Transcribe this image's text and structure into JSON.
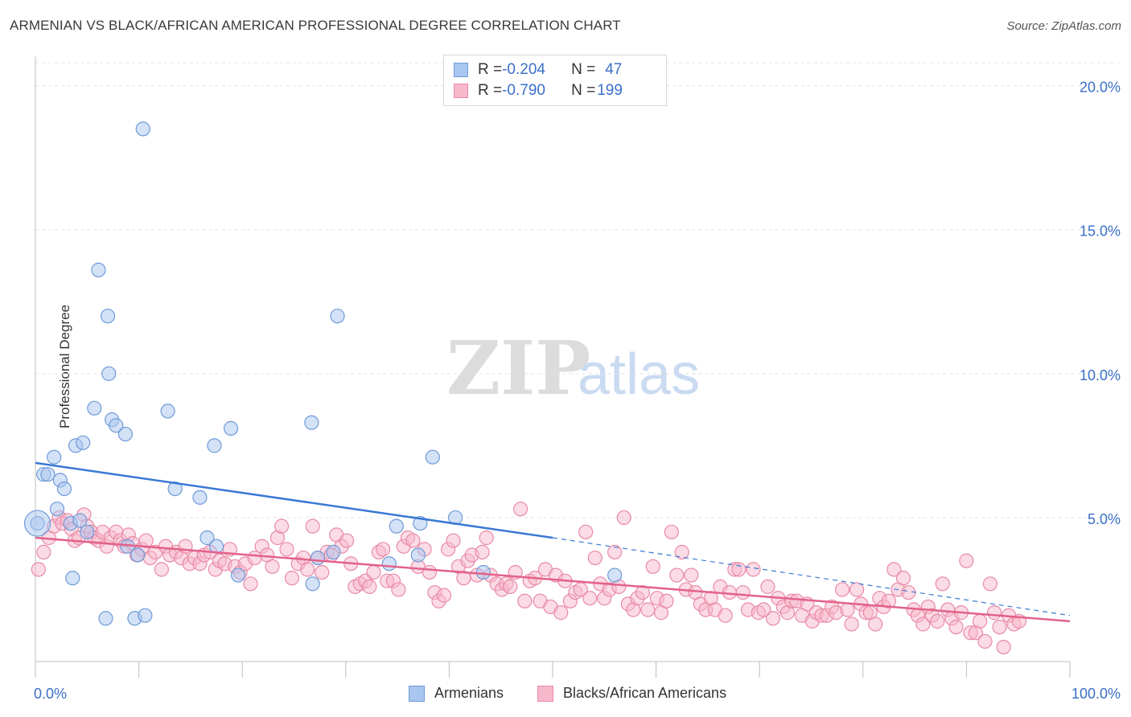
{
  "title": "ARMENIAN VS BLACK/AFRICAN AMERICAN PROFESSIONAL DEGREE CORRELATION CHART",
  "source": "Source: ZipAtlas.com",
  "watermark": {
    "zip": "ZIP",
    "atlas": "atlas"
  },
  "legend_top": [
    {
      "r_label": "R = ",
      "r_value": "-0.204",
      "n_label": "N = ",
      "n_value": "47",
      "color": "#a9c6f0",
      "border": "#6f9ad8"
    },
    {
      "r_label": "R = ",
      "r_value": "-0.790",
      "n_label": "N = ",
      "n_value": "199",
      "color": "#f7b8cb",
      "border": "#e88aa6"
    }
  ],
  "legend_bottom": [
    {
      "label": "Armenians",
      "color": "#a9c6f0",
      "border": "#6f9ad8"
    },
    {
      "label": "Blacks/African Americans",
      "color": "#f7b8cb",
      "border": "#e88aa6"
    }
  ],
  "chart_data": {
    "type": "scatter",
    "title": "ARMENIAN VS BLACK/AFRICAN AMERICAN PROFESSIONAL DEGREE CORRELATION CHART",
    "xlabel": "",
    "ylabel": "Professional Degree",
    "xlim": [
      0,
      100
    ],
    "ylim": [
      0,
      20.8
    ],
    "x_tick_labels": [
      "0.0%",
      "100.0%"
    ],
    "y_ticks": [
      5,
      10,
      15,
      20
    ],
    "y_tick_labels": [
      "5.0%",
      "10.0%",
      "15.0%",
      "20.0%"
    ],
    "grid": true,
    "series": [
      {
        "name": "Armenians",
        "color": "#6f9ad8",
        "fill": "#a9c6f0",
        "line_color": "#3a78d4",
        "trend_solid": [
          [
            0,
            6.9
          ],
          [
            50,
            4.3
          ]
        ],
        "trend_dashed": [
          [
            50,
            4.3
          ],
          [
            100,
            1.6
          ]
        ],
        "points": [
          [
            0.2,
            4.8
          ],
          [
            0.8,
            6.5
          ],
          [
            1.2,
            6.5
          ],
          [
            1.8,
            7.1
          ],
          [
            2.1,
            5.3
          ],
          [
            2.4,
            6.3
          ],
          [
            2.8,
            6.0
          ],
          [
            3.4,
            4.8
          ],
          [
            3.6,
            2.9
          ],
          [
            3.9,
            7.5
          ],
          [
            4.3,
            4.9
          ],
          [
            4.6,
            7.6
          ],
          [
            5.0,
            4.5
          ],
          [
            5.7,
            8.8
          ],
          [
            6.1,
            13.6
          ],
          [
            6.8,
            1.5
          ],
          [
            7.0,
            12.0
          ],
          [
            7.1,
            10.0
          ],
          [
            7.4,
            8.4
          ],
          [
            7.8,
            8.2
          ],
          [
            8.7,
            7.9
          ],
          [
            8.9,
            4.0
          ],
          [
            9.6,
            1.5
          ],
          [
            9.9,
            3.7
          ],
          [
            10.4,
            18.5
          ],
          [
            10.6,
            1.6
          ],
          [
            12.8,
            8.7
          ],
          [
            13.5,
            6.0
          ],
          [
            15.9,
            5.7
          ],
          [
            16.6,
            4.3
          ],
          [
            17.3,
            7.5
          ],
          [
            17.5,
            4.0
          ],
          [
            18.9,
            8.1
          ],
          [
            19.6,
            3.0
          ],
          [
            26.7,
            8.3
          ],
          [
            26.8,
            2.7
          ],
          [
            27.3,
            3.6
          ],
          [
            28.8,
            3.8
          ],
          [
            29.2,
            12.0
          ],
          [
            34.2,
            3.4
          ],
          [
            34.9,
            4.7
          ],
          [
            37.0,
            3.7
          ],
          [
            37.2,
            4.8
          ],
          [
            38.4,
            7.1
          ],
          [
            40.6,
            5.0
          ],
          [
            43.3,
            3.1
          ],
          [
            56.0,
            3.0
          ]
        ]
      },
      {
        "name": "Blacks/African Americans",
        "color": "#e88aa6",
        "fill": "#f7b8cb",
        "line_color": "#e2628a",
        "trend_solid": [
          [
            0,
            4.3
          ],
          [
            100,
            1.4
          ]
        ],
        "points": [
          [
            0.3,
            3.2
          ],
          [
            0.8,
            3.8
          ],
          [
            1.3,
            4.3
          ],
          [
            1.8,
            4.7
          ],
          [
            2.3,
            5.0
          ],
          [
            2.6,
            4.8
          ],
          [
            3.1,
            4.9
          ],
          [
            3.5,
            4.6
          ],
          [
            3.8,
            4.2
          ],
          [
            4.2,
            4.3
          ],
          [
            4.7,
            5.1
          ],
          [
            5.0,
            4.7
          ],
          [
            5.4,
            4.5
          ],
          [
            5.7,
            4.3
          ],
          [
            6.1,
            4.2
          ],
          [
            6.5,
            4.5
          ],
          [
            6.9,
            4.0
          ],
          [
            7.3,
            4.3
          ],
          [
            7.8,
            4.5
          ],
          [
            8.2,
            4.2
          ],
          [
            8.6,
            4.0
          ],
          [
            9.0,
            4.4
          ],
          [
            9.4,
            4.1
          ],
          [
            9.8,
            3.7
          ],
          [
            10.3,
            3.9
          ],
          [
            10.7,
            4.2
          ],
          [
            11.1,
            3.6
          ],
          [
            11.6,
            3.8
          ],
          [
            12.2,
            3.2
          ],
          [
            12.6,
            4.0
          ],
          [
            13.0,
            3.7
          ],
          [
            13.6,
            3.8
          ],
          [
            14.1,
            3.6
          ],
          [
            14.5,
            4.0
          ],
          [
            14.9,
            3.4
          ],
          [
            15.4,
            3.6
          ],
          [
            15.9,
            3.4
          ],
          [
            16.3,
            3.7
          ],
          [
            16.9,
            3.8
          ],
          [
            17.4,
            3.2
          ],
          [
            17.8,
            3.5
          ],
          [
            18.3,
            3.4
          ],
          [
            18.8,
            3.9
          ],
          [
            19.3,
            3.3
          ],
          [
            19.8,
            3.1
          ],
          [
            20.3,
            3.4
          ],
          [
            20.8,
            2.7
          ],
          [
            21.2,
            3.6
          ],
          [
            21.9,
            4.0
          ],
          [
            22.4,
            3.7
          ],
          [
            22.9,
            3.3
          ],
          [
            23.4,
            4.3
          ],
          [
            23.8,
            4.7
          ],
          [
            24.3,
            3.9
          ],
          [
            24.8,
            2.9
          ],
          [
            25.4,
            3.4
          ],
          [
            25.9,
            3.6
          ],
          [
            26.3,
            3.2
          ],
          [
            26.8,
            4.7
          ],
          [
            27.3,
            3.6
          ],
          [
            27.7,
            3.1
          ],
          [
            28.2,
            3.8
          ],
          [
            28.6,
            3.7
          ],
          [
            29.1,
            4.4
          ],
          [
            29.6,
            4.0
          ],
          [
            30.1,
            4.2
          ],
          [
            30.5,
            3.4
          ],
          [
            30.9,
            2.6
          ],
          [
            31.4,
            2.7
          ],
          [
            31.9,
            2.8
          ],
          [
            32.3,
            2.6
          ],
          [
            32.7,
            3.1
          ],
          [
            33.2,
            3.8
          ],
          [
            33.6,
            3.9
          ],
          [
            34.0,
            2.8
          ],
          [
            34.6,
            2.8
          ],
          [
            35.1,
            2.5
          ],
          [
            35.6,
            4.0
          ],
          [
            36.0,
            4.3
          ],
          [
            36.5,
            4.2
          ],
          [
            37.0,
            3.3
          ],
          [
            37.6,
            3.9
          ],
          [
            38.1,
            3.1
          ],
          [
            38.6,
            2.4
          ],
          [
            39.0,
            2.1
          ],
          [
            39.5,
            2.3
          ],
          [
            39.9,
            3.9
          ],
          [
            40.4,
            4.2
          ],
          [
            40.9,
            3.3
          ],
          [
            41.4,
            2.9
          ],
          [
            41.8,
            3.5
          ],
          [
            42.2,
            3.7
          ],
          [
            42.7,
            3.0
          ],
          [
            43.2,
            3.8
          ],
          [
            43.6,
            4.3
          ],
          [
            44.0,
            3.0
          ],
          [
            44.6,
            2.7
          ],
          [
            45.1,
            2.5
          ],
          [
            45.5,
            2.7
          ],
          [
            45.9,
            2.6
          ],
          [
            46.4,
            3.1
          ],
          [
            46.9,
            5.3
          ],
          [
            47.3,
            2.1
          ],
          [
            47.8,
            2.8
          ],
          [
            48.3,
            2.9
          ],
          [
            48.8,
            2.1
          ],
          [
            49.3,
            3.2
          ],
          [
            49.8,
            1.9
          ],
          [
            50.3,
            3.0
          ],
          [
            50.8,
            1.7
          ],
          [
            51.2,
            2.8
          ],
          [
            51.7,
            2.1
          ],
          [
            52.2,
            2.4
          ],
          [
            52.7,
            2.5
          ],
          [
            53.2,
            4.5
          ],
          [
            53.6,
            2.2
          ],
          [
            54.1,
            3.6
          ],
          [
            54.6,
            2.7
          ],
          [
            55.0,
            2.2
          ],
          [
            55.5,
            2.5
          ],
          [
            56.0,
            3.8
          ],
          [
            56.4,
            2.6
          ],
          [
            56.9,
            5.0
          ],
          [
            57.3,
            2.0
          ],
          [
            57.8,
            1.8
          ],
          [
            58.2,
            2.2
          ],
          [
            58.7,
            2.4
          ],
          [
            59.2,
            1.8
          ],
          [
            59.7,
            3.3
          ],
          [
            60.1,
            2.2
          ],
          [
            60.5,
            1.7
          ],
          [
            61.0,
            2.1
          ],
          [
            61.5,
            4.5
          ],
          [
            62.0,
            3.0
          ],
          [
            62.5,
            3.8
          ],
          [
            62.9,
            2.5
          ],
          [
            63.4,
            3.0
          ],
          [
            63.8,
            2.4
          ],
          [
            64.3,
            2.0
          ],
          [
            64.8,
            1.8
          ],
          [
            65.3,
            2.2
          ],
          [
            65.7,
            1.8
          ],
          [
            66.2,
            2.6
          ],
          [
            66.7,
            1.6
          ],
          [
            67.1,
            2.4
          ],
          [
            67.6,
            3.2
          ],
          [
            68.0,
            3.2
          ],
          [
            68.4,
            2.4
          ],
          [
            68.9,
            1.8
          ],
          [
            69.4,
            3.2
          ],
          [
            69.9,
            1.7
          ],
          [
            70.4,
            1.8
          ],
          [
            70.8,
            2.6
          ],
          [
            71.3,
            1.5
          ],
          [
            71.8,
            2.2
          ],
          [
            72.3,
            1.9
          ],
          [
            72.7,
            1.7
          ],
          [
            73.1,
            2.1
          ],
          [
            73.6,
            2.1
          ],
          [
            74.1,
            1.6
          ],
          [
            74.6,
            2.0
          ],
          [
            75.1,
            1.4
          ],
          [
            75.5,
            1.7
          ],
          [
            76.0,
            1.6
          ],
          [
            76.5,
            1.6
          ],
          [
            77.0,
            1.9
          ],
          [
            77.4,
            1.7
          ],
          [
            78.0,
            2.5
          ],
          [
            78.5,
            1.8
          ],
          [
            78.9,
            1.3
          ],
          [
            79.4,
            2.5
          ],
          [
            79.8,
            2.0
          ],
          [
            80.3,
            1.7
          ],
          [
            80.7,
            1.7
          ],
          [
            81.2,
            1.3
          ],
          [
            81.6,
            2.2
          ],
          [
            82.0,
            1.9
          ],
          [
            82.5,
            2.1
          ],
          [
            83.0,
            3.2
          ],
          [
            83.4,
            2.5
          ],
          [
            83.9,
            2.9
          ],
          [
            84.4,
            2.4
          ],
          [
            84.9,
            1.8
          ],
          [
            85.3,
            1.6
          ],
          [
            85.8,
            1.3
          ],
          [
            86.3,
            1.9
          ],
          [
            86.7,
            1.6
          ],
          [
            87.2,
            1.4
          ],
          [
            87.7,
            2.7
          ],
          [
            88.2,
            1.8
          ],
          [
            88.6,
            1.5
          ],
          [
            89.0,
            1.2
          ],
          [
            89.5,
            1.7
          ],
          [
            90.0,
            3.5
          ],
          [
            90.4,
            1.0
          ],
          [
            90.9,
            1.0
          ],
          [
            91.3,
            1.4
          ],
          [
            91.8,
            0.7
          ],
          [
            92.3,
            2.7
          ],
          [
            92.7,
            1.7
          ],
          [
            93.2,
            1.2
          ],
          [
            93.6,
            0.5
          ],
          [
            94.1,
            1.6
          ],
          [
            94.6,
            1.3
          ],
          [
            95.1,
            1.4
          ]
        ]
      }
    ]
  }
}
